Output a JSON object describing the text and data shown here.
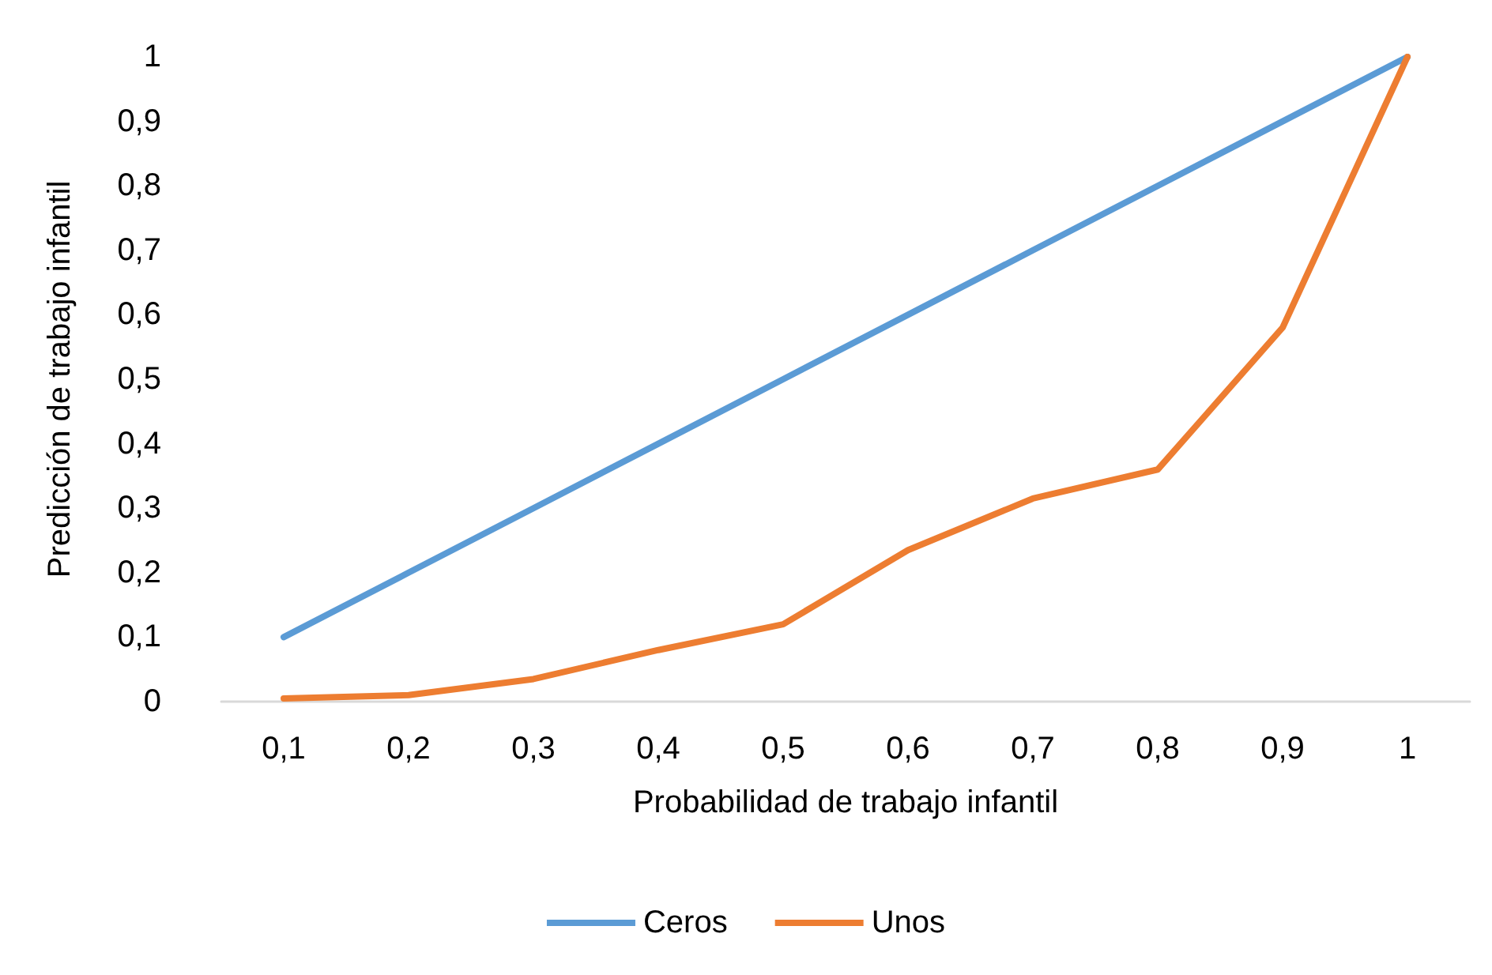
{
  "chart_data": {
    "type": "line",
    "xlabel": "Probabilidad de trabajo infantil",
    "ylabel": "Predicción de trabajo infantil",
    "categories": [
      "0,1",
      "0,2",
      "0,3",
      "0,4",
      "0,5",
      "0,6",
      "0,7",
      "0,8",
      "0,9",
      "1"
    ],
    "series": [
      {
        "name": "Ceros",
        "color": "#5b9bd5",
        "values": [
          0.1,
          0.2,
          0.3,
          0.4,
          0.5,
          0.6,
          0.7,
          0.8,
          0.9,
          1
        ]
      },
      {
        "name": "Unos",
        "color": "#ed7d31",
        "values": [
          0.005,
          0.01,
          0.035,
          0.08,
          0.12,
          0.235,
          0.315,
          0.36,
          0.58,
          1
        ]
      }
    ],
    "ylim": [
      0,
      1
    ],
    "yticks": [
      0,
      {
        "value": 0.1,
        "label": "0,1"
      },
      {
        "value": 0.2,
        "label": "0,2"
      },
      {
        "value": 0.3,
        "label": "0,3"
      },
      {
        "value": 0.4,
        "label": "0,4"
      },
      {
        "value": 0.5,
        "label": "0,5"
      },
      {
        "value": 0.6,
        "label": "0,6"
      },
      {
        "value": 0.7,
        "label": "0,7"
      },
      {
        "value": 0.8,
        "label": "0,8"
      },
      {
        "value": 0.9,
        "label": "0,9"
      },
      1
    ],
    "grid": false,
    "legend": "bottom",
    "marker": "none",
    "line_style": "solid"
  }
}
